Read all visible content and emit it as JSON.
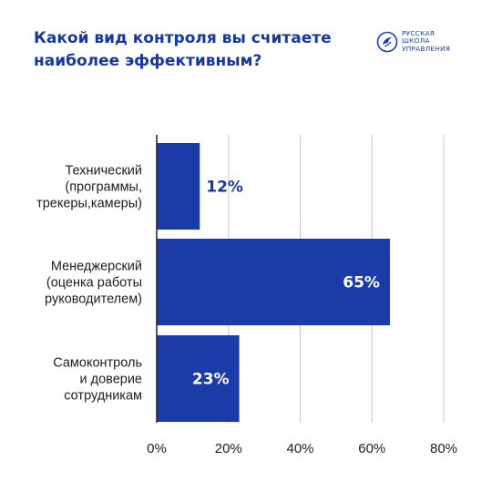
{
  "header": {
    "title_line1": "Какой вид контроля вы считаете",
    "title_line2": "наиболее эффективным?"
  },
  "logo": {
    "icon": "dove-emblem-icon",
    "line1": "РУССКАЯ",
    "line2": "ШКОЛА",
    "line3": "УПРАВЛЕНИЯ"
  },
  "colors": {
    "accent": "#1737a3",
    "bar": "#1b3ba8",
    "grid": "#c8c8c8",
    "text": "#1e1e1e"
  },
  "chart_data": {
    "type": "bar",
    "orientation": "horizontal",
    "title": "Какой вид контроля вы считаете наиболее эффективным?",
    "categories": [
      [
        "Технический",
        "(программы,",
        "трекеры,камеры)"
      ],
      [
        "Менеджерский",
        "(оценка работы",
        "руководителем)"
      ],
      [
        "Самоконтроль",
        "и доверие",
        "сотрудникам"
      ]
    ],
    "values": [
      12,
      65,
      23
    ],
    "data_labels": [
      "12%",
      "65%",
      "23%"
    ],
    "xlim": [
      0,
      80
    ],
    "xticks": [
      0,
      20,
      40,
      60,
      80
    ],
    "xtick_labels": [
      "0%",
      "20%",
      "40%",
      "60%",
      "80%"
    ],
    "grid": true,
    "legend": "none"
  }
}
